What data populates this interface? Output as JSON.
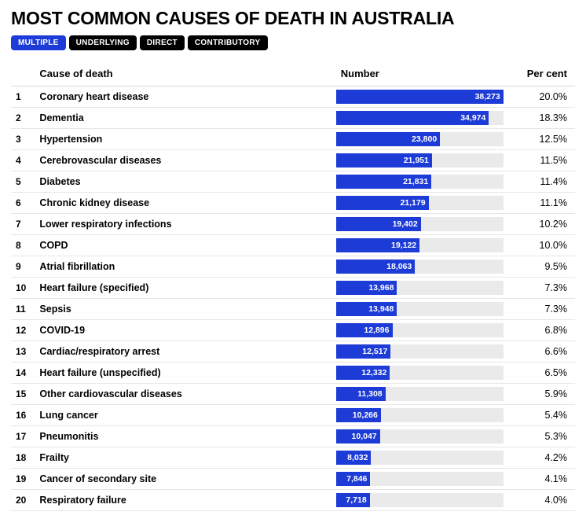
{
  "title": "MOST COMMON CAUSES OF DEATH IN AUSTRALIA",
  "tabs": [
    {
      "label": "MULTIPLE",
      "active": true
    },
    {
      "label": "UNDERLYING",
      "active": false
    },
    {
      "label": "DIRECT",
      "active": false
    },
    {
      "label": "CONTRIBUTORY",
      "active": false
    }
  ],
  "columns": {
    "rank": "",
    "cause": "Cause of death",
    "number": "Number",
    "percent": "Per cent"
  },
  "style": {
    "bar_fill_color": "#1d3bd6",
    "bar_track_color": "#eaeaea",
    "bar_label_color": "#ffffff",
    "row_border_color": "#e6e6e6",
    "header_border_color": "#d9d9d9",
    "tab_active_bg": "#1d3bd6",
    "tab_inactive_bg": "#000000",
    "font_family": "Helvetica, Arial, sans-serif",
    "title_fontsize": 23,
    "cell_fontsize": 12.5,
    "bar_max_value": 38273
  },
  "rows": [
    {
      "rank": 1,
      "cause": "Coronary heart disease",
      "number": 38273,
      "number_str": "38,273",
      "percent": "20.0%"
    },
    {
      "rank": 2,
      "cause": "Dementia",
      "number": 34974,
      "number_str": "34,974",
      "percent": "18.3%"
    },
    {
      "rank": 3,
      "cause": "Hypertension",
      "number": 23800,
      "number_str": "23,800",
      "percent": "12.5%"
    },
    {
      "rank": 4,
      "cause": "Cerebrovascular diseases",
      "number": 21951,
      "number_str": "21,951",
      "percent": "11.5%"
    },
    {
      "rank": 5,
      "cause": "Diabetes",
      "number": 21831,
      "number_str": "21,831",
      "percent": "11.4%"
    },
    {
      "rank": 6,
      "cause": "Chronic kidney disease",
      "number": 21179,
      "number_str": "21,179",
      "percent": "11.1%"
    },
    {
      "rank": 7,
      "cause": "Lower respiratory infections",
      "number": 19402,
      "number_str": "19,402",
      "percent": "10.2%"
    },
    {
      "rank": 8,
      "cause": "COPD",
      "number": 19122,
      "number_str": "19,122",
      "percent": "10.0%"
    },
    {
      "rank": 9,
      "cause": "Atrial fibrillation",
      "number": 18063,
      "number_str": "18,063",
      "percent": "9.5%"
    },
    {
      "rank": 10,
      "cause": "Heart failure (specified)",
      "number": 13968,
      "number_str": "13,968",
      "percent": "7.3%"
    },
    {
      "rank": 11,
      "cause": "Sepsis",
      "number": 13948,
      "number_str": "13,948",
      "percent": "7.3%"
    },
    {
      "rank": 12,
      "cause": "COVID-19",
      "number": 12896,
      "number_str": "12,896",
      "percent": "6.8%"
    },
    {
      "rank": 13,
      "cause": "Cardiac/respiratory arrest",
      "number": 12517,
      "number_str": "12,517",
      "percent": "6.6%"
    },
    {
      "rank": 14,
      "cause": "Heart failure (unspecified)",
      "number": 12332,
      "number_str": "12,332",
      "percent": "6.5%"
    },
    {
      "rank": 15,
      "cause": "Other cardiovascular diseases",
      "number": 11308,
      "number_str": "11,308",
      "percent": "5.9%"
    },
    {
      "rank": 16,
      "cause": "Lung cancer",
      "number": 10266,
      "number_str": "10,266",
      "percent": "5.4%"
    },
    {
      "rank": 17,
      "cause": "Pneumonitis",
      "number": 10047,
      "number_str": "10,047",
      "percent": "5.3%"
    },
    {
      "rank": 18,
      "cause": "Frailty",
      "number": 8032,
      "number_str": "8,032",
      "percent": "4.2%"
    },
    {
      "rank": 19,
      "cause": "Cancer of secondary site",
      "number": 7846,
      "number_str": "7,846",
      "percent": "4.1%"
    },
    {
      "rank": 20,
      "cause": "Respiratory failure",
      "number": 7718,
      "number_str": "7,718",
      "percent": "4.0%"
    }
  ]
}
